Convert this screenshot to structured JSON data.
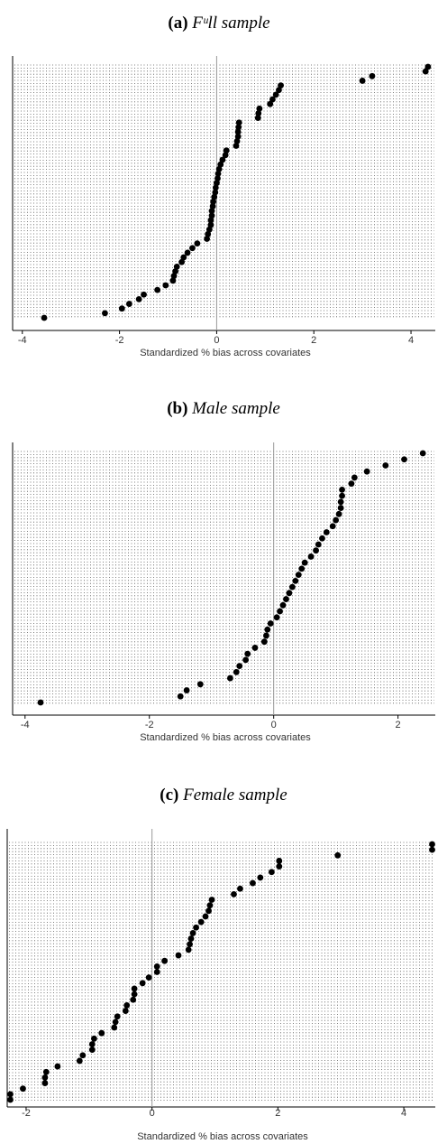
{
  "chart_data": [
    {
      "type": "scatter",
      "title_letter": "(a)",
      "title_text": "Fᵘll sample",
      "xlabel": "Standardized % bias across covariates",
      "ylabel": "",
      "xlim": [
        -4.2,
        4.5
      ],
      "xticks": [
        -4,
        -2,
        0,
        2,
        4
      ],
      "reference_line_x": 0,
      "grid": "dotted",
      "x": [
        -3.55,
        -2.3,
        -1.95,
        -1.8,
        -1.6,
        -1.5,
        -1.22,
        -1.05,
        -0.9,
        -0.88,
        -0.85,
        -0.82,
        -0.72,
        -0.68,
        -0.6,
        -0.5,
        -0.4,
        -0.2,
        -0.18,
        -0.15,
        -0.12,
        -0.12,
        -0.1,
        -0.1,
        -0.08,
        -0.07,
        -0.05,
        -0.03,
        -0.02,
        0.0,
        0.02,
        0.03,
        0.05,
        0.08,
        0.12,
        0.18,
        0.2,
        0.4,
        0.42,
        0.44,
        0.44,
        0.45,
        0.46,
        0.85,
        0.86,
        0.88,
        1.1,
        1.15,
        1.22,
        1.28,
        1.32,
        3.0,
        3.2,
        4.3,
        4.35
      ],
      "y": [
        1,
        2,
        3,
        4,
        5,
        6,
        7,
        8,
        9,
        10,
        11,
        12,
        13,
        14,
        15,
        16,
        17,
        18,
        19,
        20,
        21,
        22,
        23,
        24,
        25,
        26,
        27,
        28,
        29,
        30,
        31,
        32,
        33,
        34,
        35,
        36,
        37,
        38,
        39,
        40,
        41,
        42,
        43,
        44,
        45,
        46,
        47,
        48,
        49,
        50,
        51,
        52,
        53,
        54,
        55
      ]
    },
    {
      "type": "scatter",
      "title_letter": "(b)",
      "title_text": "Male sample",
      "xlabel": "Standardized % bias across covariates",
      "ylabel": "",
      "xlim": [
        -4.2,
        2.6
      ],
      "xticks": [
        -4,
        -2,
        0,
        2
      ],
      "reference_line_x": 0,
      "grid": "dotted",
      "x": [
        -3.75,
        -1.5,
        -1.4,
        -1.18,
        -0.7,
        -0.6,
        -0.55,
        -0.45,
        -0.42,
        -0.3,
        -0.15,
        -0.12,
        -0.1,
        -0.05,
        0.05,
        0.1,
        0.15,
        0.2,
        0.25,
        0.3,
        0.35,
        0.4,
        0.45,
        0.5,
        0.6,
        0.68,
        0.72,
        0.78,
        0.85,
        0.95,
        1.0,
        1.05,
        1.08,
        1.08,
        1.1,
        1.1,
        1.25,
        1.3,
        1.5,
        1.8,
        2.1,
        2.4
      ],
      "y": [
        1,
        2,
        3,
        4,
        5,
        6,
        7,
        8,
        9,
        10,
        11,
        12,
        13,
        14,
        15,
        16,
        17,
        18,
        19,
        20,
        21,
        22,
        23,
        24,
        25,
        26,
        27,
        28,
        29,
        30,
        31,
        32,
        33,
        34,
        35,
        36,
        37,
        38,
        39,
        40,
        41,
        42
      ]
    },
    {
      "type": "scatter",
      "title_letter": "(c)",
      "title_text": "Female sample",
      "xlabel": "Standardized % bias across covariates",
      "ylabel": "",
      "xlim": [
        -2.3,
        4.5
      ],
      "xticks": [
        -2,
        0,
        2,
        4
      ],
      "reference_line_x": 0,
      "grid": "dotted",
      "x": [
        -2.25,
        -2.25,
        -2.05,
        -1.7,
        -1.7,
        -1.68,
        -1.5,
        -1.15,
        -1.1,
        -0.95,
        -0.95,
        -0.92,
        -0.8,
        -0.6,
        -0.58,
        -0.55,
        -0.42,
        -0.4,
        -0.3,
        -0.28,
        -0.28,
        -0.15,
        -0.05,
        0.08,
        0.08,
        0.2,
        0.42,
        0.58,
        0.6,
        0.62,
        0.65,
        0.7,
        0.78,
        0.85,
        0.9,
        0.92,
        0.95,
        1.3,
        1.4,
        1.6,
        1.72,
        1.9,
        2.02,
        2.02,
        2.95,
        4.45,
        4.45
      ],
      "y": [
        1,
        2,
        3,
        4,
        5,
        6,
        7,
        8,
        9,
        10,
        11,
        12,
        13,
        14,
        15,
        16,
        17,
        18,
        19,
        20,
        21,
        22,
        23,
        24,
        25,
        26,
        27,
        28,
        29,
        30,
        31,
        32,
        33,
        34,
        35,
        36,
        37,
        38,
        39,
        40,
        41,
        42,
        43,
        44,
        45,
        46,
        47
      ]
    }
  ]
}
